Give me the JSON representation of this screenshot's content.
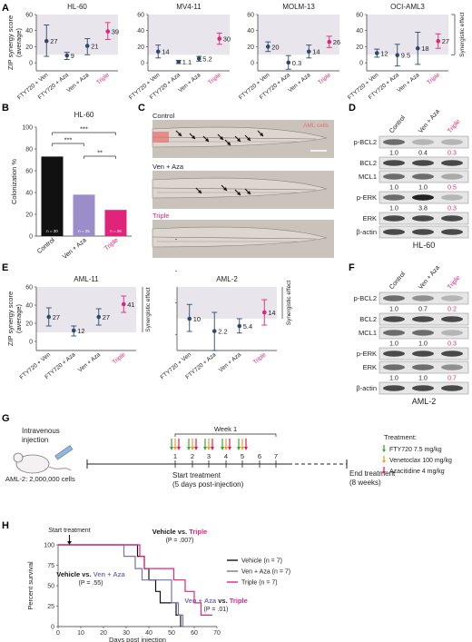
{
  "panels": {
    "A": "A",
    "B": "B",
    "C": "C",
    "D": "D",
    "E": "E",
    "F": "F",
    "G": "G",
    "H": "H"
  },
  "colors": {
    "triple": "#e0247a",
    "venaza": "#7b6fb3",
    "navy": "#2e4a6b",
    "band": "#e8e5ec",
    "black": "#111111"
  },
  "A": {
    "ylabel": "ZIP synergy score\n(average)",
    "side_label": "Synergistic effect",
    "ticks": [
      0,
      20,
      40,
      60
    ],
    "categories": [
      "FTY720 + Ven",
      "FTY720 + Aza",
      "Ven + Aza",
      "Triple"
    ],
    "charts": [
      {
        "title": "HL-60",
        "values": [
          27,
          9,
          21,
          39
        ],
        "errors": [
          [
            8,
            47
          ],
          [
            4,
            13
          ],
          [
            10,
            30
          ],
          [
            29,
            50
          ]
        ],
        "labels": [
          "27",
          "9",
          "21",
          "39"
        ]
      },
      {
        "title": "MV4-11",
        "values": [
          14,
          1.1,
          5.2,
          30
        ],
        "errors": [
          [
            6,
            22
          ],
          [
            -1,
            3
          ],
          [
            2,
            8
          ],
          [
            23,
            37
          ]
        ],
        "labels": [
          "14",
          "1.1",
          "5.2",
          "30"
        ]
      },
      {
        "title": "MOLM-13",
        "values": [
          20,
          0.3,
          14,
          26
        ],
        "errors": [
          [
            14,
            26
          ],
          [
            -8,
            9
          ],
          [
            6,
            22
          ],
          [
            19,
            33
          ]
        ],
        "labels": [
          "20",
          "0.3",
          "14",
          "26"
        ]
      },
      {
        "title": "OCI-AML3",
        "values": [
          12,
          9.5,
          18,
          27
        ],
        "errors": [
          [
            7,
            17
          ],
          [
            -4,
            23
          ],
          [
            -2,
            38
          ],
          [
            18,
            36
          ]
        ],
        "labels": [
          "12",
          "9.5",
          "18",
          "27"
        ]
      }
    ]
  },
  "B": {
    "title": "HL-60",
    "ylabel": "Colonization %",
    "ticks": [
      0,
      20,
      40,
      60,
      80,
      100
    ],
    "categories": [
      "Control",
      "Ven + Aza",
      "Triple"
    ],
    "values": [
      73,
      38,
      24
    ],
    "n_labels": [
      "n = 30",
      "n = 35",
      "n = 35"
    ],
    "sig": [
      "***",
      "***",
      "**"
    ]
  },
  "C": {
    "labels": [
      "Control",
      "Ven + Aza",
      "Triple"
    ],
    "overlay": "AML cells"
  },
  "D": {
    "cell_line": "HL-60",
    "lanes": [
      "Control",
      "Ven + Aza",
      "Triple"
    ],
    "rows": [
      {
        "name": "p-BCL2",
        "quant": [
          "1.0",
          "0.4",
          "0.3"
        ]
      },
      {
        "name": "BCL2",
        "quant": null
      },
      {
        "name": "MCL1",
        "quant": [
          "1.0",
          "1.0",
          "0.5"
        ]
      },
      {
        "name": "p-ERK",
        "quant": [
          "1.0",
          "3.8",
          "0.3"
        ]
      },
      {
        "name": "ERK",
        "quant": null
      },
      {
        "name": "β-actin",
        "quant": null
      }
    ]
  },
  "E": {
    "ylabel": "ZIP synergy score\n(average)",
    "side_label_left": "Synergistic effect",
    "side_label_right": "Synergistic effect",
    "ticks": [
      0,
      20,
      40,
      60
    ],
    "categories": [
      "FTY720 + Ven",
      "FTY720 + Aza",
      "Ven + Aza",
      "Triple"
    ],
    "charts": [
      {
        "title": "AML-11",
        "values": [
          27,
          12,
          27,
          41
        ],
        "errors": [
          [
            17,
            37
          ],
          [
            6,
            17
          ],
          [
            18,
            36
          ],
          [
            32,
            50
          ]
        ],
        "labels": [
          "27",
          "12",
          "27",
          "41"
        ]
      },
      {
        "title": "AML-2",
        "values": [
          10,
          2.2,
          5.4,
          14
        ],
        "errors": [
          [
            2,
            19
          ],
          [
            -10,
            14
          ],
          [
            1,
            10
          ],
          [
            6,
            22
          ]
        ],
        "labels": [
          "10",
          "2.2",
          "5.4",
          "14"
        ]
      }
    ]
  },
  "F": {
    "cell_line": "AML-2",
    "lanes": [
      "Control",
      "Ven + Aza",
      "Triple"
    ],
    "rows": [
      {
        "name": "p-BCL2",
        "quant": [
          "1.0",
          "0.7",
          "0.2"
        ]
      },
      {
        "name": "BCL2",
        "quant": null
      },
      {
        "name": "MCL1",
        "quant": [
          "1.0",
          "1.0",
          "0.3"
        ]
      },
      {
        "name": "p-ERK",
        "quant": null
      },
      {
        "name": "ERK",
        "quant": [
          "1.0",
          "1.0",
          "0.7"
        ]
      },
      {
        "name": "β-actin",
        "quant": null
      }
    ]
  },
  "G": {
    "injection": "Intravenous\ninjection",
    "cells": "AML-2: 2,000,000 cells",
    "week": "Week 1",
    "days": [
      "1",
      "2",
      "3",
      "4",
      "5",
      "6",
      "7"
    ],
    "start": "Start treatment\n(5 days post-injection)",
    "end": "End treatment\n(8 weeks)",
    "treat_title": "Treatment:",
    "treatments": [
      {
        "label": "FTY720 7.5 mg/kg",
        "color": "#3aa63a"
      },
      {
        "label": "Venetoclax 100 mg/kg",
        "color": "#f29a1f"
      },
      {
        "label": "Azacitidine 4 mg/kg",
        "color": "#d81b60"
      }
    ]
  },
  "H": {
    "start": "Start treatment",
    "ylabel": "Percent survival",
    "xlabel": "Days post injection",
    "xticks": [
      0,
      10,
      20,
      30,
      40,
      50,
      60,
      70
    ],
    "yticks": [
      0,
      25,
      50,
      75,
      100
    ],
    "legend": [
      "Vehicle (n = 7)",
      "Ven + Aza (n = 7)",
      "Triple (n = 7)"
    ],
    "ann1": {
      "a": "Vehicle",
      "vs": " vs. ",
      "b": "Triple",
      "p": "(P = .007)"
    },
    "ann2": {
      "a": "Vehicle",
      "vs": " vs. ",
      "b": "Ven + Aza",
      "p": "(P = .55)"
    },
    "ann3": {
      "a": "Ven + Aza",
      "vs": " vs. ",
      "b": "Triple",
      "p": "(P = .01)"
    },
    "series": [
      {
        "name": "Vehicle",
        "color": "#111111",
        "points": [
          [
            0,
            100
          ],
          [
            35,
            100
          ],
          [
            35,
            86
          ],
          [
            38,
            86
          ],
          [
            38,
            71
          ],
          [
            40,
            71
          ],
          [
            40,
            57
          ],
          [
            43,
            57
          ],
          [
            43,
            43
          ],
          [
            45,
            43
          ],
          [
            45,
            29
          ],
          [
            52,
            29
          ],
          [
            52,
            14
          ],
          [
            54,
            14
          ],
          [
            54,
            0
          ]
        ]
      },
      {
        "name": "Ven + Aza",
        "color": "#7b6fb3",
        "points": [
          [
            0,
            100
          ],
          [
            29,
            100
          ],
          [
            29,
            86
          ],
          [
            34,
            86
          ],
          [
            34,
            71
          ],
          [
            37,
            71
          ],
          [
            37,
            57
          ],
          [
            50,
            57
          ],
          [
            50,
            29
          ],
          [
            53,
            29
          ],
          [
            53,
            14
          ],
          [
            55,
            14
          ],
          [
            55,
            0
          ]
        ]
      },
      {
        "name": "Triple",
        "color": "#e0247a",
        "points": [
          [
            0,
            100
          ],
          [
            36,
            100
          ],
          [
            36,
            86
          ],
          [
            38,
            86
          ],
          [
            38,
            71
          ],
          [
            51,
            71
          ],
          [
            51,
            57
          ],
          [
            56,
            57
          ],
          [
            56,
            43
          ],
          [
            60,
            43
          ],
          [
            60,
            29
          ],
          [
            63,
            29
          ],
          [
            63,
            14
          ],
          [
            68,
            14
          ]
        ]
      }
    ]
  }
}
